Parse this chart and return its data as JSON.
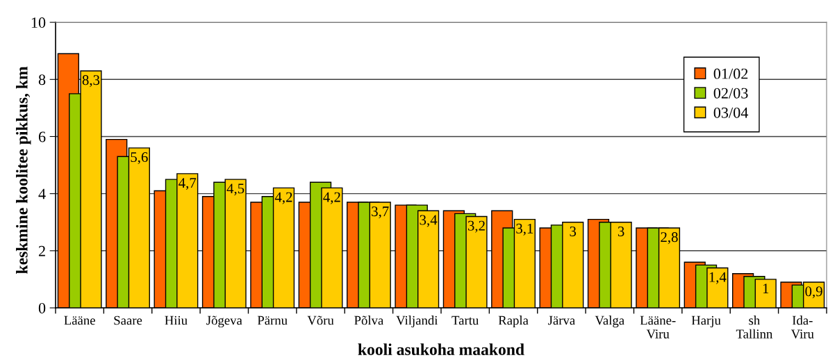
{
  "chart_data": {
    "type": "bar",
    "xlabel": "kooli asukoha maakond",
    "ylabel": "keskmine koolitee pikkus, km",
    "categories": [
      "Lääne",
      "Saare",
      "Hiiu",
      "Jõgeva",
      "Pärnu",
      "Võru",
      "Põlva",
      "Viljandi",
      "Tartu",
      "Rapla",
      "Järva",
      "Valga",
      "Lääne-\nViru",
      "Harju",
      "sh\nTallinn",
      "Ida-\nViru"
    ],
    "series": [
      {
        "name": "01/02",
        "color": "#ff6600",
        "values": [
          8.9,
          5.9,
          4.1,
          3.9,
          3.7,
          3.7,
          3.7,
          3.6,
          3.4,
          3.4,
          2.8,
          3.1,
          2.8,
          1.6,
          1.2,
          0.9
        ]
      },
      {
        "name": "02/03",
        "color": "#99cc00",
        "values": [
          7.5,
          5.3,
          4.5,
          4.4,
          3.9,
          4.4,
          3.7,
          3.6,
          3.3,
          2.8,
          2.9,
          3.0,
          2.8,
          1.5,
          1.1,
          0.8
        ]
      },
      {
        "name": "03/04",
        "color": "#ffcc00",
        "values": [
          8.3,
          5.6,
          4.7,
          4.5,
          4.2,
          4.2,
          3.7,
          3.4,
          3.2,
          3.1,
          3.0,
          3.0,
          2.8,
          1.4,
          1.0,
          0.9
        ],
        "value_labels": [
          "8,3",
          "5,6",
          "4,7",
          "4,5",
          "4,2",
          "4,2",
          "3,7",
          "3,4",
          "3,2",
          "3,1",
          "3",
          "3",
          "2,8",
          "1,4",
          "1",
          "0,9"
        ]
      }
    ],
    "ylim": [
      0,
      10
    ],
    "yticks": [
      0,
      2,
      4,
      6,
      8,
      10
    ],
    "grid": "y",
    "legend": "top right"
  }
}
